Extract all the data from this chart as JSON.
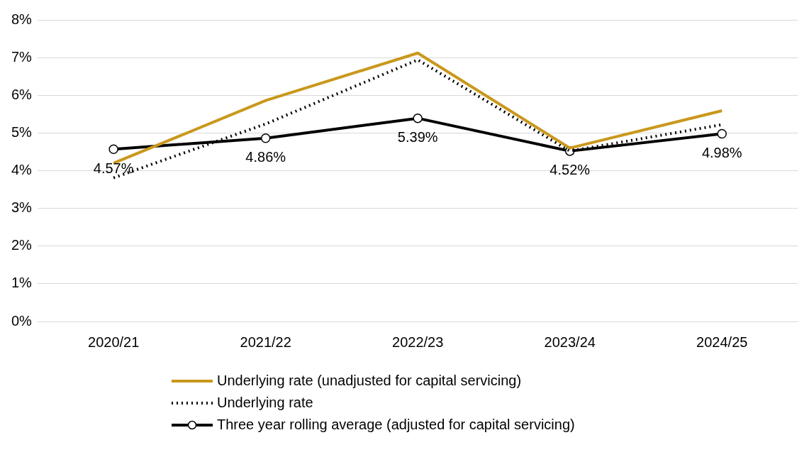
{
  "chart_data": {
    "type": "line",
    "categories": [
      "2020/21",
      "2021/22",
      "2022/23",
      "2023/24",
      "2024/25"
    ],
    "series": [
      {
        "name": "Underlying rate (unadjusted for capital servicing)",
        "color": "#c9981c",
        "values": [
          4.2,
          5.86,
          7.12,
          4.6,
          5.59
        ],
        "line_style": "solid",
        "marker": "none"
      },
      {
        "name": "Underlying rate",
        "color": "#000000",
        "values": [
          3.81,
          5.24,
          6.94,
          4.52,
          5.22
        ],
        "line_style": "dotted",
        "marker": "none"
      },
      {
        "name": "Three year rolling average (adjusted for capital servicing)",
        "color": "#000000",
        "values": [
          4.57,
          4.86,
          5.39,
          4.52,
          4.98
        ],
        "line_style": "solid",
        "marker": "circle",
        "value_labels": [
          "4.57%",
          "4.86%",
          "5.39%",
          "4.52%",
          "4.98%"
        ]
      }
    ],
    "ylim": [
      0,
      8
    ],
    "yticks": [
      {
        "value": 0,
        "label": "0%"
      },
      {
        "value": 1,
        "label": "1%"
      },
      {
        "value": 2,
        "label": "2%"
      },
      {
        "value": 3,
        "label": "3%"
      },
      {
        "value": 4,
        "label": "4%"
      },
      {
        "value": 5,
        "label": "5%"
      },
      {
        "value": 6,
        "label": "6%"
      },
      {
        "value": 7,
        "label": "7%"
      },
      {
        "value": 8,
        "label": "8%"
      }
    ],
    "grid": "y",
    "legend": "bottom"
  }
}
